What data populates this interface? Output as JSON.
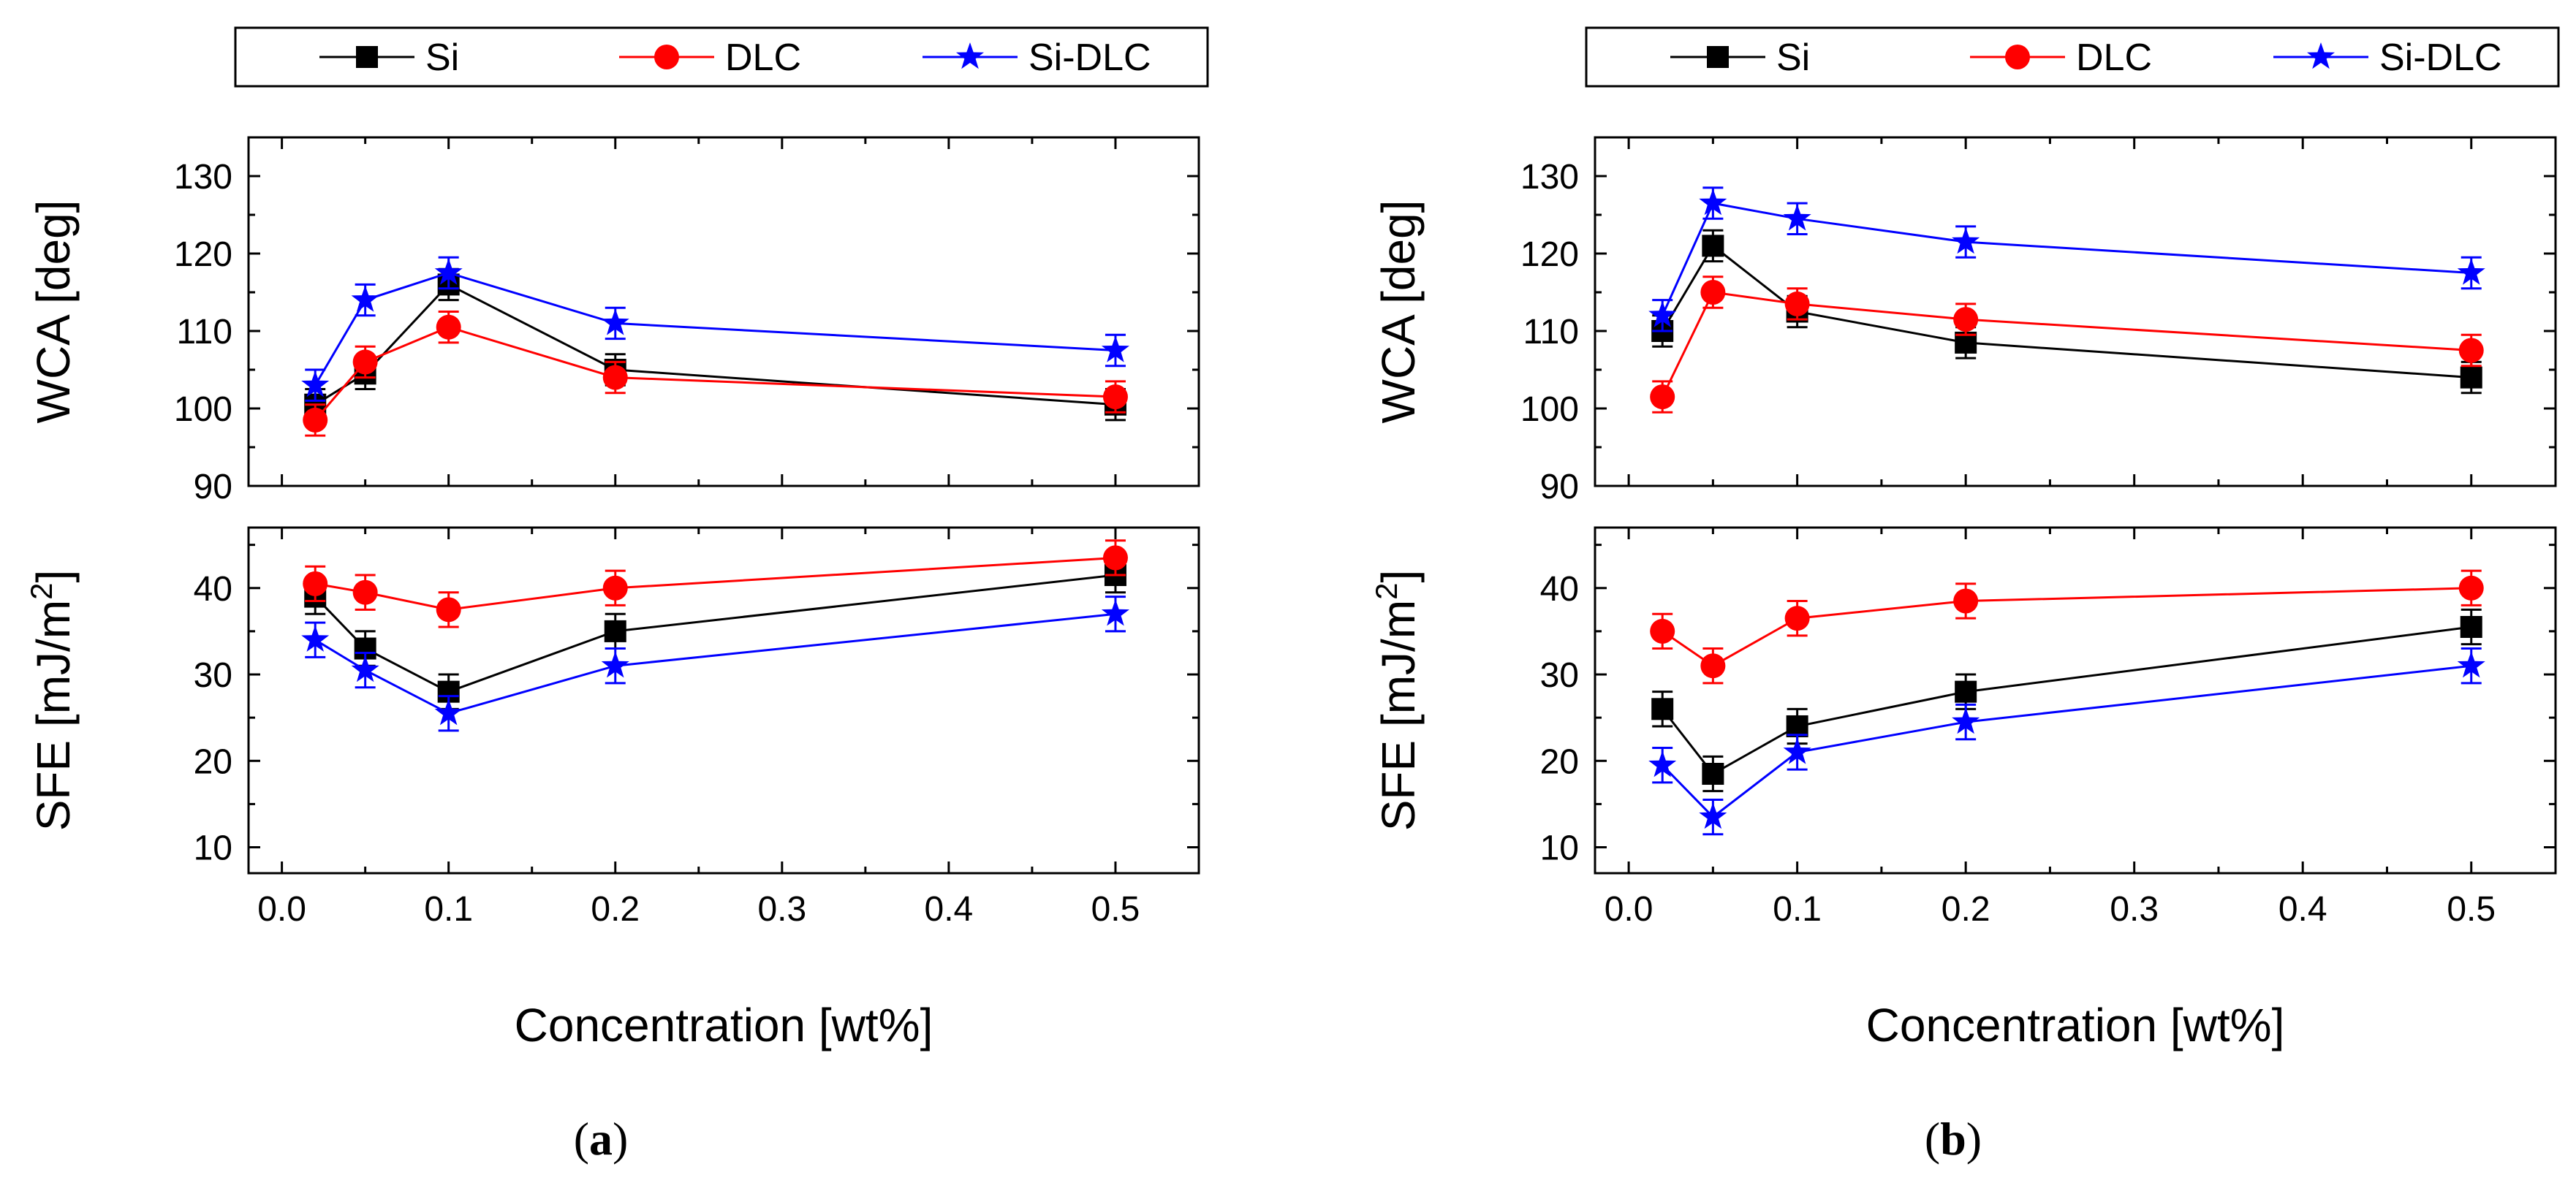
{
  "colors": {
    "Si": "#000000",
    "DLC": "#ff0000",
    "Si-DLC": "#0000ff"
  },
  "legend": [
    {
      "name": "Si",
      "color": "#000000",
      "marker": "square"
    },
    {
      "name": "DLC",
      "color": "#ff0000",
      "marker": "circle"
    },
    {
      "name": "Si-DLC",
      "color": "#0000ff",
      "marker": "star"
    }
  ],
  "chart_data": [
    {
      "panel": "a",
      "caption": {
        "open": "(",
        "letter": "a",
        "close": ")"
      },
      "type": "line",
      "xlabel": "Concentration [wt%]",
      "xlim": [
        -0.02,
        0.55
      ],
      "xticks": [
        "0.0",
        "0.1",
        "0.2",
        "0.3",
        "0.4",
        "0.5"
      ],
      "x": [
        0.02,
        0.05,
        0.1,
        0.2,
        0.5
      ],
      "subplots": [
        {
          "ylabel": "WCA [deg]",
          "ylim": [
            90,
            135
          ],
          "yticks": [
            "90",
            "100",
            "110",
            "120",
            "130"
          ],
          "series": [
            {
              "name": "Si",
              "values": [
                100.5,
                104.5,
                116,
                105,
                100.5
              ],
              "error": [
                2,
                2,
                2,
                2,
                2
              ]
            },
            {
              "name": "DLC",
              "values": [
                98.5,
                106,
                110.5,
                104,
                101.5
              ],
              "error": [
                2,
                2,
                2,
                2,
                2
              ]
            },
            {
              "name": "Si-DLC",
              "values": [
                103,
                114,
                117.5,
                111,
                107.5
              ],
              "error": [
                2,
                2,
                2,
                2,
                2
              ]
            }
          ]
        },
        {
          "ylabel": "SFE [mJ/m",
          "ylabel_sup": "2",
          "ylabel_end": "]",
          "ylim": [
            7,
            47
          ],
          "yticks": [
            "10",
            "20",
            "30",
            "40"
          ],
          "series": [
            {
              "name": "Si",
              "values": [
                39,
                33,
                28,
                35,
                41.5
              ],
              "error": [
                2,
                2,
                2,
                2,
                2
              ]
            },
            {
              "name": "DLC",
              "values": [
                40.5,
                39.5,
                37.5,
                40,
                43.5
              ],
              "error": [
                2,
                2,
                2,
                2,
                2
              ]
            },
            {
              "name": "Si-DLC",
              "values": [
                34,
                30.5,
                25.5,
                31,
                37
              ],
              "error": [
                2,
                2,
                2,
                2,
                2
              ]
            }
          ]
        }
      ]
    },
    {
      "panel": "b",
      "caption": {
        "open": "(",
        "letter": "b",
        "close": ")"
      },
      "type": "line",
      "xlabel": "Concentration [wt%]",
      "xlim": [
        -0.02,
        0.55
      ],
      "xticks": [
        "0.0",
        "0.1",
        "0.2",
        "0.3",
        "0.4",
        "0.5"
      ],
      "x": [
        0.02,
        0.05,
        0.1,
        0.2,
        0.5
      ],
      "subplots": [
        {
          "ylabel": "WCA [deg]",
          "ylim": [
            90,
            135
          ],
          "yticks": [
            "90",
            "100",
            "110",
            "120",
            "130"
          ],
          "series": [
            {
              "name": "Si",
              "values": [
                110,
                121,
                112.5,
                108.5,
                104
              ],
              "error": [
                2,
                2,
                2,
                2,
                2
              ]
            },
            {
              "name": "DLC",
              "values": [
                101.5,
                115,
                113.5,
                111.5,
                107.5
              ],
              "error": [
                2,
                2,
                2,
                2,
                2
              ]
            },
            {
              "name": "Si-DLC",
              "values": [
                112,
                126.5,
                124.5,
                121.5,
                117.5
              ],
              "error": [
                2,
                2,
                2,
                2,
                2
              ]
            }
          ]
        },
        {
          "ylabel": "SFE [mJ/m",
          "ylabel_sup": "2",
          "ylabel_end": "]",
          "ylim": [
            7,
            47
          ],
          "yticks": [
            "10",
            "20",
            "30",
            "40"
          ],
          "series": [
            {
              "name": "Si",
              "values": [
                26,
                18.5,
                24,
                28,
                35.5
              ],
              "error": [
                2,
                2,
                2,
                2,
                2
              ]
            },
            {
              "name": "DLC",
              "values": [
                35,
                31,
                36.5,
                38.5,
                40
              ],
              "error": [
                2,
                2,
                2,
                2,
                2
              ]
            },
            {
              "name": "Si-DLC",
              "values": [
                19.5,
                13.5,
                21,
                24.5,
                31
              ],
              "error": [
                2,
                2,
                2,
                2,
                2
              ]
            }
          ]
        }
      ]
    }
  ]
}
